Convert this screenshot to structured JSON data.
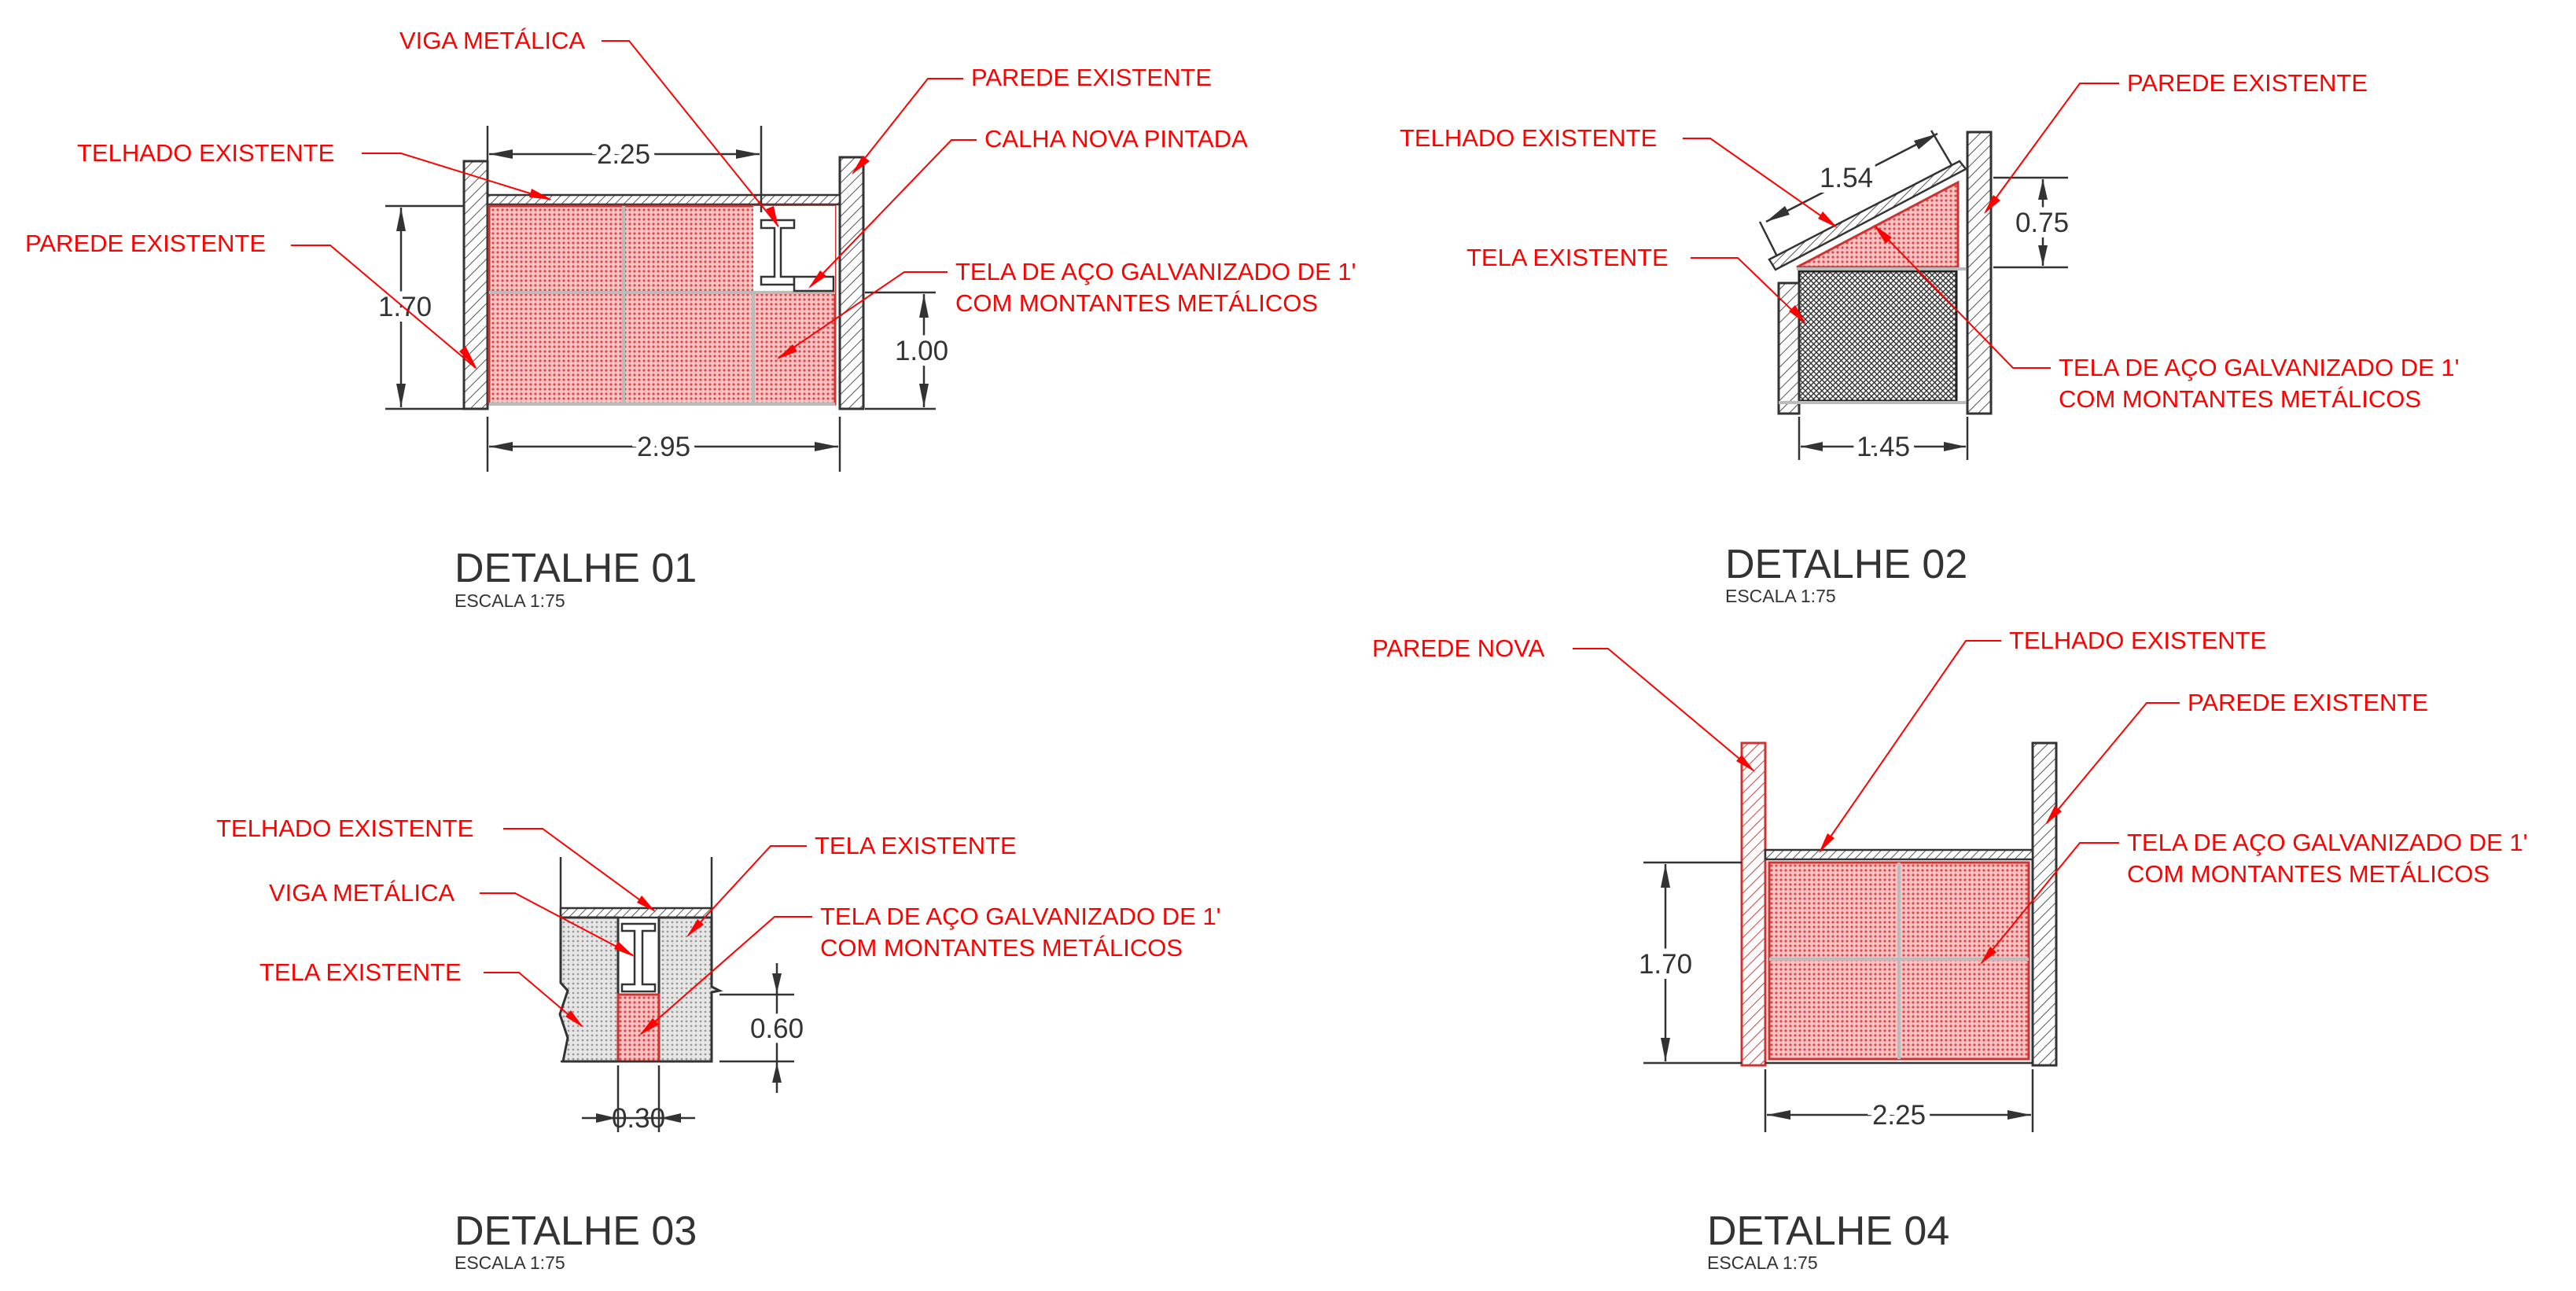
{
  "details": [
    {
      "id": "d1",
      "title": "DETALHE 01",
      "scale": "ESCALA 1:75",
      "labels": {
        "viga": "VIGA METÁLICA",
        "telhado": "TELHADO EXISTENTE",
        "parede_esq": "PAREDE EXISTENTE",
        "parede_dir": "PAREDE EXISTENTE",
        "calha": "CALHA NOVA PINTADA",
        "tela_l1": "TELA DE AÇO GALVANIZADO DE 1'",
        "tela_l2": "COM MONTANTES METÁLICOS"
      },
      "dims": {
        "top": "2.25",
        "left": "1.70",
        "right": "1.00",
        "bottom": "2.95"
      }
    },
    {
      "id": "d2",
      "title": "DETALHE 02",
      "scale": "ESCALA 1:75",
      "labels": {
        "telhado": "TELHADO EXISTENTE",
        "parede": "PAREDE EXISTENTE",
        "tela_existente": "TELA EXISTENTE",
        "tela_l1": "TELA DE AÇO GALVANIZADO DE 1'",
        "tela_l2": "COM MONTANTES METÁLICOS"
      },
      "dims": {
        "slope": "1.54",
        "right": "0.75",
        "bottom": "1.45"
      }
    },
    {
      "id": "d3",
      "title": "DETALHE 03",
      "scale": "ESCALA 1:75",
      "labels": {
        "telhado": "TELHADO EXISTENTE",
        "viga": "VIGA METÁLICA",
        "tela_existente_l": "TELA EXISTENTE",
        "tela_existente_r": "TELA EXISTENTE",
        "tela_l1": "TELA DE AÇO GALVANIZADO DE 1'",
        "tela_l2": "COM MONTANTES METÁLICOS"
      },
      "dims": {
        "right": "0.60",
        "bottom": "0.30"
      }
    },
    {
      "id": "d4",
      "title": "DETALHE 04",
      "scale": "ESCALA 1:75",
      "labels": {
        "parede_nova": "PAREDE NOVA",
        "telhado": "TELHADO EXISTENTE",
        "parede": "PAREDE EXISTENTE",
        "tela_l1": "TELA DE AÇO GALVANIZADO DE 1'",
        "tela_l2": "COM MONTANTES METÁLICOS"
      },
      "dims": {
        "left": "1.70",
        "bottom": "2.25"
      }
    }
  ],
  "colors": {
    "annotation": "#ff0000",
    "linework": "#333333",
    "screen": "#e8a0a0"
  }
}
